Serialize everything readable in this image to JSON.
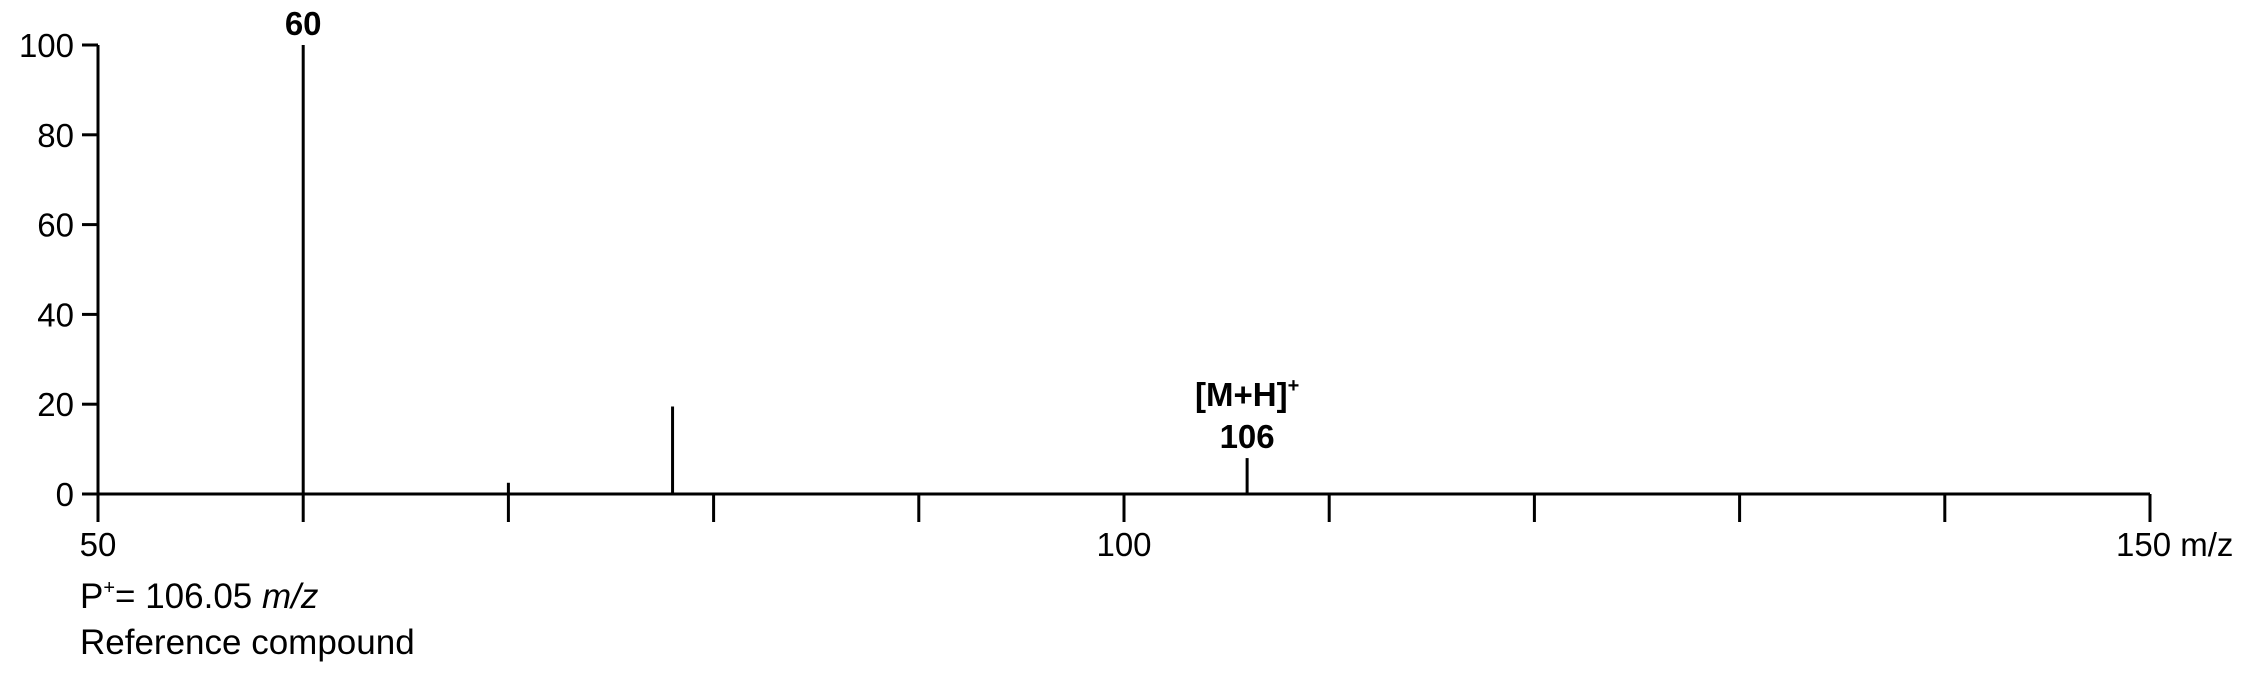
{
  "chart_data": {
    "type": "bar",
    "subtype": "mass-spectrum-stick",
    "x": [
      60,
      70,
      78,
      106
    ],
    "values": [
      100,
      2.5,
      19.5,
      8
    ],
    "xlim": [
      50,
      150
    ],
    "ylim": [
      0,
      100
    ],
    "yticks": [
      0,
      20,
      40,
      60,
      80,
      100
    ],
    "xticks_major": [
      50,
      100,
      150
    ],
    "xticks_minor": [
      60,
      70,
      80,
      90,
      110,
      120,
      130,
      140
    ],
    "xtick_labels": [
      "50",
      "100",
      "150 m/z"
    ],
    "peak_labels": [
      {
        "x": 60,
        "lines": [
          "60"
        ]
      },
      {
        "x": 106,
        "lines": [
          "[M+H]",
          "106"
        ],
        "superscript": "+"
      }
    ],
    "grid": false,
    "legend": "none"
  },
  "footnotes": {
    "p_label": "P",
    "p_sup": "+",
    "p_value": "= 106.05 ",
    "p_unit": "m/z",
    "compound": "Reference compound"
  },
  "colors": {
    "axis": "#000000",
    "peaks": "#000000",
    "text": "#000000"
  }
}
